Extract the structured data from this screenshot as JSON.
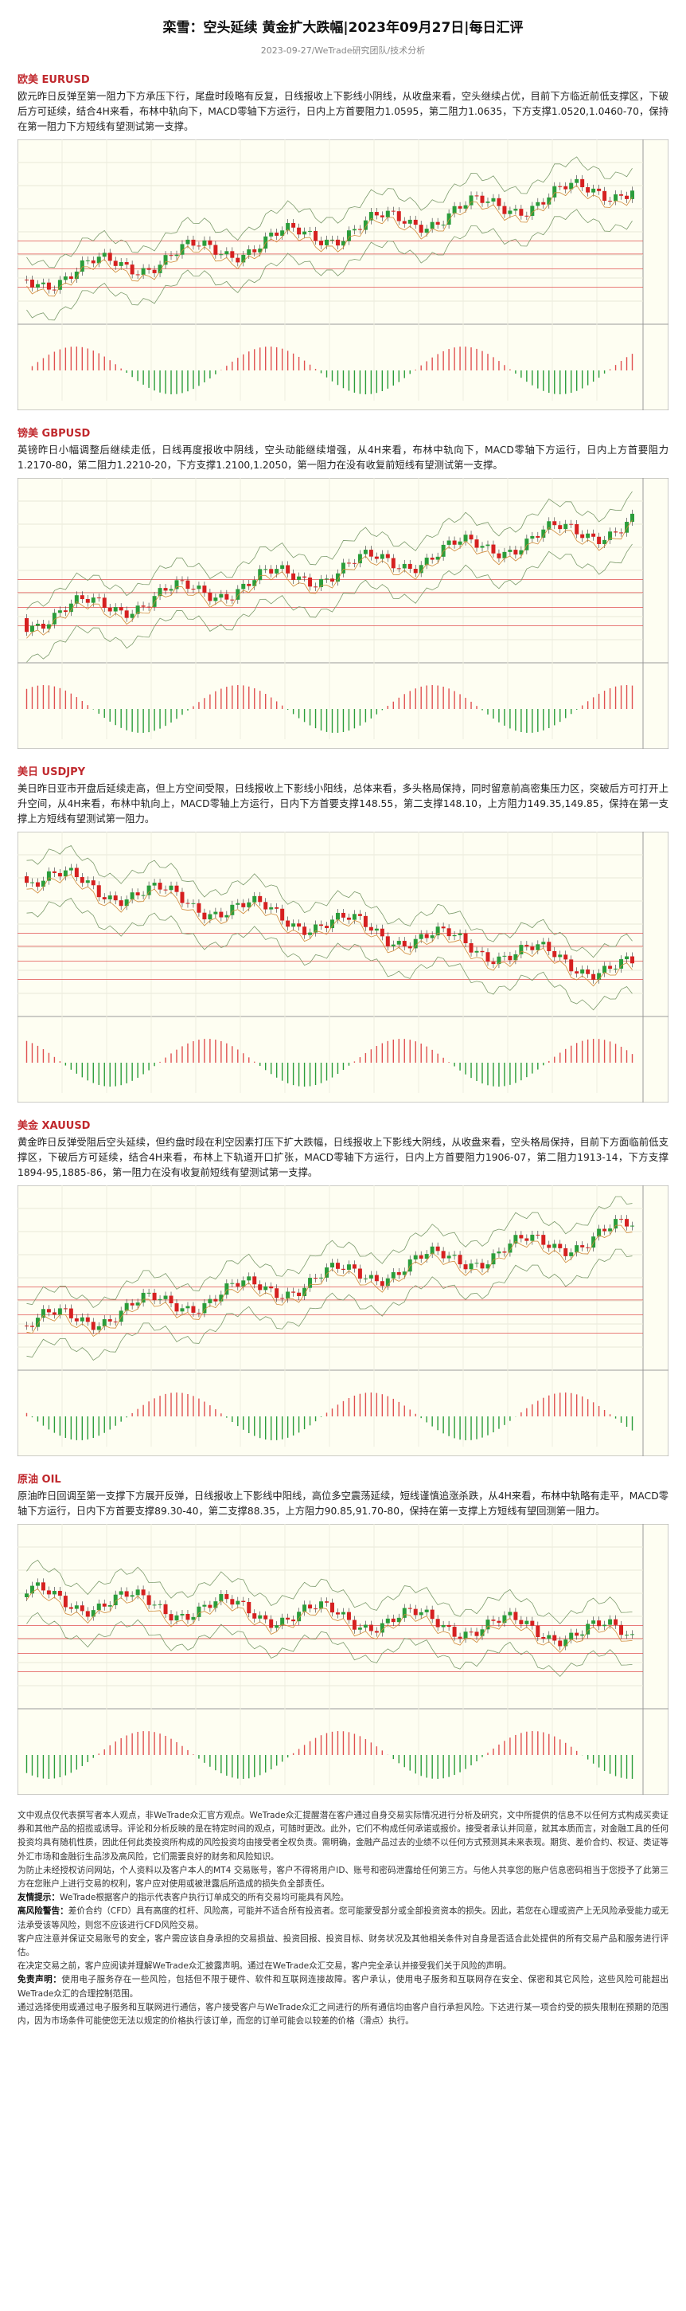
{
  "header": {
    "title": "栾雪：空头延续 黄金扩大跌幅|2023年09月27日|每日汇评",
    "subtitle": "2023-09-27/WeTrade研究团队/技术分析"
  },
  "sections": [
    {
      "heading": "欧美 EURUSD",
      "body": "欧元昨日反弹至第一阻力下方承压下行，尾盘时段略有反复，日线报收上下影线小阴线，从收盘来看，空头继续占优，目前下方临近前低支撑区，下破后方可延续，结合4H来看，布林中轨向下，MACD零轴下方运行，日内上方首要阻力1.0595，第二阻力1.0635，下方支撑1.0520,1.0460-70，保持在第一阻力下方短线有望测试第一支撑。"
    },
    {
      "heading": "镑美 GBPUSD",
      "body": "英镑昨日小幅调整后继续走低，日线再度报收中阴线，空头动能继续增强，从4H来看，布林中轨向下，MACD零轴下方运行，日内上方首要阻力1.2170-80，第二阻力1.2210-20，下方支撑1.2100,1.2050，第一阻力在没有收复前短线有望测试第一支撑。"
    },
    {
      "heading": "美日 USDJPY",
      "body": "美日昨日亚市开盘后延续走高，但上方空间受限，日线报收上下影线小阳线，总体来看，多头格局保持，同时留意前高密集压力区，突破后方可打开上升空间，从4H来看，布林中轨向上，MACD零轴上方运行，日内下方首要支撑148.55，第二支撑148.10，上方阻力149.35,149.85，保持在第一支撑上方短线有望测试第一阻力。"
    },
    {
      "heading": "美金 XAUUSD",
      "body": "黄金昨日反弹受阻后空头延续，但约盘时段在利空因素打压下扩大跌幅，日线报收上下影线大阴线，从收盘来看，空头格局保持，目前下方面临前低支撑区，下破后方可延续，结合4H来看，布林上下轨道开口扩张，MACD零轴下方运行，日内上方首要阻力1906-07，第二阻力1913-14，下方支撑1894-95,1885-86，第一阻力在没有收复前短线有望测试第一支撑。"
    },
    {
      "heading": "原油 OIL",
      "body": "原油昨日回调至第一支撑下方展开反弹，日线报收上下影线中阳线，高位多空震荡延续，短线谨慎追涨杀跌，从4H来看，布林中轨略有走平，MACD零轴下方运行，日内下方首要支撑89.30-40，第二支撑88.35，上方阻力90.85,91.70-80，保持在第一支撑上方短线有望回测第一阻力。"
    }
  ],
  "disclaimer": [
    {
      "text": "文中观点仅代表撰写者本人观点，非WeTrade众汇官方观点。WeTrade众汇提醒潜在客户通过自身交易实际情况进行分析及研究，文中所提供的信息不以任何方式构成买卖证券和其他产品的招揽或诱导。评论和分析反映的是在特定时间的观点，可随时更改。此外，它们不构成任何承诺或报价。接受者承认并同意，就其本质而言，对金融工具的任何投资均具有随机性质，因此任何此类投资所构成的风险投资均由接受者全权负责。需明确，金融产品过去的业绩不以任何方式预测其未来表现。期货、差价合约、权证、类证等外汇市场和金融衍生品涉及高风险，它们需要良好的财务和风险知识。"
    },
    {
      "text": "为防止未经授权访问网站，个人资料以及客户本人的MT4 交易账号，客户不得将用户ID、账号和密码泄露给任何第三方。与他人共享您的账户信息密码相当于您授予了此第三方在您账户上进行交易的权利，客户应对使用或被泄露后所造成的损失负全部责任。"
    },
    {
      "label": "友情提示：",
      "text": "WeTrade根据客户的指示代表客户执行订单成交的所有交易均可能具有风险。"
    },
    {
      "label": "高风险警告：",
      "text": "差价合约（CFD）具有高度的杠杆、风险高，可能并不适合所有投资者。您可能蒙受部分或全部投资资本的损失。因此，若您在心理或资产上无风险承受能力或无法承受该等风险，则您不应该进行CFD风险交易。"
    },
    {
      "text": "客户应注意并保证交易账号的安全，客户需应该自身承担的交易损益、投资回报、投资目标、财务状况及其他相关条件对自身是否适合此处提供的所有交易产品和服务进行评估。"
    },
    {
      "text": "在决定交易之前，客户应阅读并理解WeTrade众汇披露声明。通过在WeTrade众汇交易，客户完全承认并接受我们关于风险的声明。"
    },
    {
      "label": "免责声明：",
      "text": "使用电子服务存在一些风险，包括但不限于硬件、软件和互联网连接故障。客户承认，使用电子服务和互联网存在安全、保密和其它风险，这些风险可能超出WeTrade众汇的合理控制范围。"
    },
    {
      "text": "通过选择使用或通过电子服务和互联网进行通信，客户接受客户与WeTrade众汇之间进行的所有通信均由客户自行承担风险。下达进行某一项合约受的损失限制在预期的范围内，因为市场条件可能使您无法以规定的价格执行该订单，而您的订单可能会以较差的价格（滑点）执行。"
    }
  ]
}
